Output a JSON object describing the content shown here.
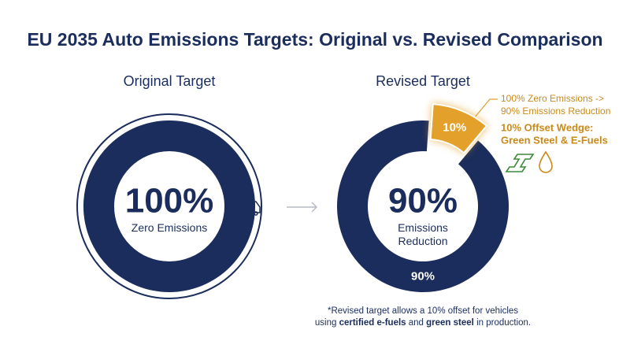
{
  "title": "EU 2035 Auto Emissions Targets: Original vs. Revised Comparison",
  "chart_data": [
    {
      "type": "donut",
      "title": "Original Target",
      "categories": [
        "Zero Emissions"
      ],
      "values": [
        100
      ],
      "value_labels": [
        "100%"
      ],
      "colors": [
        "#1b2d5c"
      ]
    },
    {
      "type": "donut",
      "title": "Revised Target",
      "categories": [
        "Emissions Reduction",
        null
      ],
      "values": [
        90,
        10
      ],
      "value_labels": [
        "90%",
        "10%"
      ],
      "colors": [
        "#1b2d5c",
        "#e3a02a"
      ]
    }
  ],
  "annotations": [
    "100% Zero Emissions ->",
    "90% Emissions Reduction",
    "10% Offset Wedge:",
    "Green Steel & E-Fuels"
  ],
  "footnote": {
    "line1": "*Revised target allows a 10% offset for vehicles",
    "line2": [
      "using ",
      "certified e-fuels",
      " and ",
      "green steel",
      " in production."
    ]
  }
}
